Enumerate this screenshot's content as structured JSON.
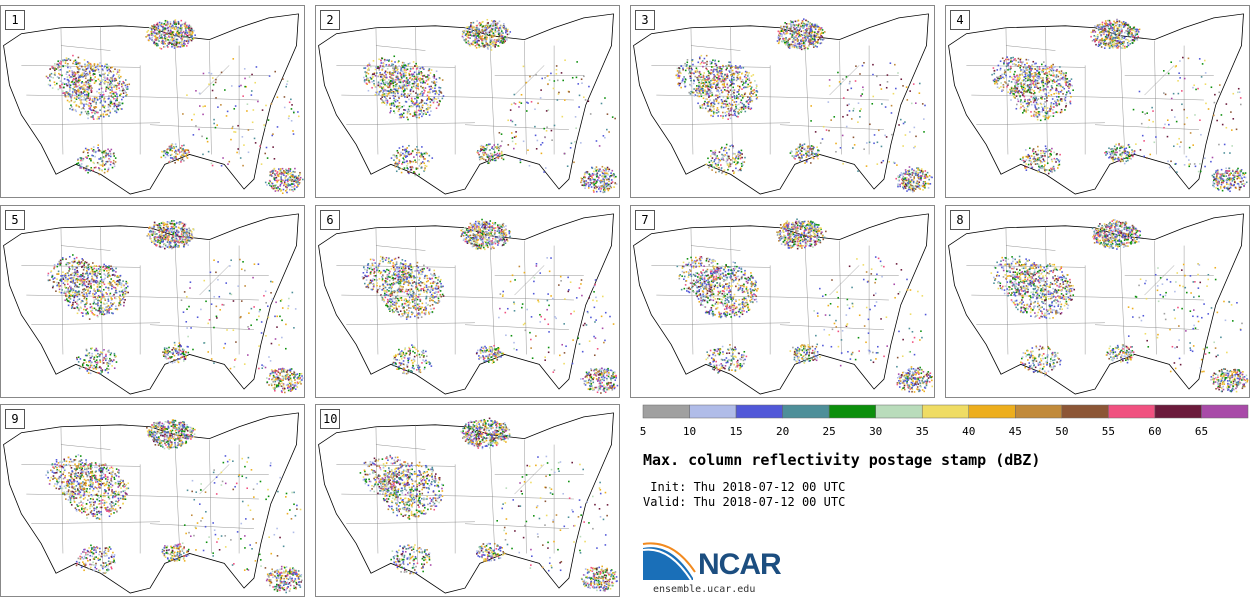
{
  "panels": [
    {
      "label": "1"
    },
    {
      "label": "2"
    },
    {
      "label": "3"
    },
    {
      "label": "4"
    },
    {
      "label": "5"
    },
    {
      "label": "6"
    },
    {
      "label": "7"
    },
    {
      "label": "8"
    },
    {
      "label": "9"
    },
    {
      "label": "10"
    }
  ],
  "colorbar": {
    "ticks": [
      "5",
      "10",
      "15",
      "20",
      "25",
      "30",
      "35",
      "40",
      "45",
      "50",
      "55",
      "60",
      "65"
    ],
    "colors": [
      "#a0a0a0",
      "#b0bce8",
      "#5158d8",
      "#4e8f99",
      "#0c8f0c",
      "#b9dcbb",
      "#efdc64",
      "#edae1d",
      "#c18a3a",
      "#8c5636",
      "#f05180",
      "#6b1a3b",
      "#a84aa8"
    ]
  },
  "title": "Max. column reflectivity postage stamp (dBZ)",
  "init": " Init: Thu 2018-07-12 00 UTC",
  "valid": "Valid: Thu 2018-07-12 00 UTC",
  "logo": {
    "name": "NCAR",
    "url": "ensemble.ucar.edu"
  }
}
